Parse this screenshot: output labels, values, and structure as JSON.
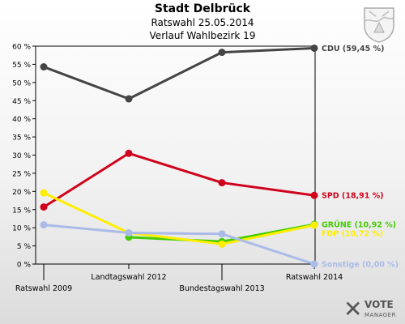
{
  "header": {
    "title": "Stadt Delbrück",
    "subtitle": "Ratswahl 25.05.2014",
    "subtitle2": "Verlauf Wahlbezirk 19"
  },
  "logo": {
    "line1": "VOTE",
    "line2": "MANAGER"
  },
  "chart_data": {
    "type": "line",
    "categories": [
      "Ratswahl 2009",
      "Landtagswahl 2012",
      "Bundestagswahl 2013",
      "Ratswahl 2014"
    ],
    "ylim": [
      0,
      60
    ],
    "yticks": [
      "0 %",
      "5 %",
      "10 %",
      "15 %",
      "20 %",
      "25 %",
      "30 %",
      "35 %",
      "40 %",
      "45 %",
      "50 %",
      "55 %",
      "60 %"
    ],
    "grid": false,
    "series": [
      {
        "name": "CDU",
        "end_label": "CDU (59,45 %)",
        "color": "#444444",
        "values": [
          54.3,
          45.5,
          58.3,
          59.45
        ]
      },
      {
        "name": "SPD",
        "end_label": "SPD (18,91 %)",
        "color": "#d0021b",
        "values": [
          15.7,
          30.5,
          22.4,
          18.91
        ]
      },
      {
        "name": "GRÜNE",
        "end_label": "GRÜNE (10,92 %)",
        "color": "#44cc00",
        "values": [
          null,
          7.4,
          6.2,
          10.92
        ]
      },
      {
        "name": "FDP",
        "end_label": "FDP (10,72 %)",
        "color": "#ffee00",
        "values": [
          19.6,
          8.6,
          5.5,
          10.72
        ]
      },
      {
        "name": "Sonstige",
        "end_label": "Sonstige (0,00 %)",
        "color": "#aabbe8",
        "values": [
          10.8,
          8.6,
          8.3,
          0.0
        ]
      }
    ]
  }
}
